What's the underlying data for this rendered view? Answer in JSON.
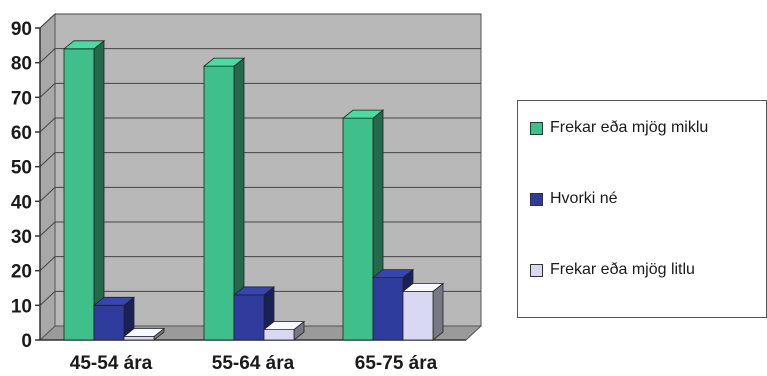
{
  "chart_data": {
    "type": "bar",
    "categories": [
      "45-54 ára",
      "55-64 ára",
      "65-75 ára"
    ],
    "series": [
      {
        "name": "Frekar eða mjög miklu",
        "values": [
          84,
          79,
          64
        ],
        "color": "#3fbf8a"
      },
      {
        "name": "Hvorki né",
        "values": [
          10,
          13,
          18
        ],
        "color": "#2f3c9e"
      },
      {
        "name": "Frekar eða mjög litlu",
        "values": [
          1,
          3,
          14
        ],
        "color": "#d8d8f2"
      }
    ],
    "yticks": [
      "0",
      "10",
      "20",
      "30",
      "40",
      "50",
      "60",
      "70",
      "80",
      "90"
    ],
    "ylim": [
      0,
      90
    ],
    "grid": true,
    "legend_position": "right",
    "title": "",
    "xlabel": "",
    "ylabel": ""
  }
}
